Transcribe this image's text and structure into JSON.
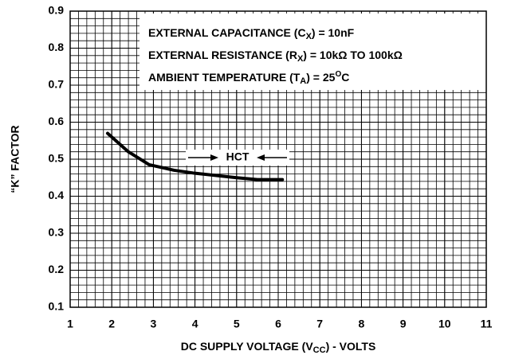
{
  "chart_data": {
    "type": "line",
    "xlabel": {
      "main": "DC SUPPLY VOLTAGE (V",
      "sub": "CC",
      "tail": ") - VOLTS"
    },
    "ylabel": "“K” FACTOR",
    "annotations": [
      {
        "main": "EXTERNAL CAPACITANCE (C",
        "sub": "X",
        "tail": ") = 10nF"
      },
      {
        "main": "EXTERNAL RESISTANCE (R",
        "sub": "X",
        "tail": ") = 10kΩ TO 100kΩ"
      },
      {
        "main": "AMBIENT TEMPERATURE (T",
        "sub": "A",
        "tail": ") = 25",
        "sup": "O",
        "end": "C"
      }
    ],
    "xlim": [
      1,
      11
    ],
    "xticks": [
      1,
      2,
      3,
      4,
      5,
      6,
      7,
      8,
      9,
      10,
      11
    ],
    "ylim": [
      0.1,
      0.9
    ],
    "yticks": [
      0.1,
      0.2,
      0.3,
      0.4,
      0.5,
      0.6,
      0.7,
      0.8,
      0.9
    ],
    "grid": true,
    "series": [
      {
        "name": "HCT",
        "color": "#000000",
        "x": [
          1.9,
          2.4,
          2.9,
          3.5,
          4.0,
          5.0,
          5.5,
          6.1
        ],
        "values": [
          0.57,
          0.52,
          0.485,
          0.47,
          0.462,
          0.45,
          0.445,
          0.445
        ]
      }
    ]
  }
}
